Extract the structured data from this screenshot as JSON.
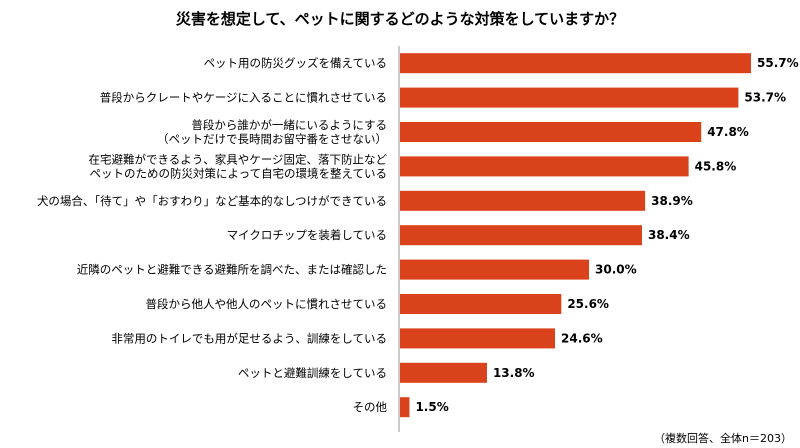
{
  "chart_data": {
    "type": "bar",
    "orientation": "horizontal",
    "title": "災害を想定して、ペットに関するどのような対策をしていますか？",
    "categories": [
      "ペット用の防災グッズを備えている",
      "普段からクレートやケージに入ることに慣れさせている",
      "普段から誰かが一緒にいるようにする\n（ペットだけで長時間お留守番をさせない）",
      "在宅避難ができるよう、家具やケージ固定、落下防止など\nペットのための防災対策によって自宅の環境を整えている",
      "犬の場合、「待て」や「おすわり」など基本的なしつけができている",
      "マイクロチップを装着している",
      "近隣のペットと避難できる避難所を調べた、または確認した",
      "普段から他人や他人のペットに慣れさせている",
      "非常用のトイレでも用が足せるよう、訓練をしている",
      "ペットと避難訓練をしている",
      "その他"
    ],
    "values": [
      55.7,
      53.7,
      47.8,
      45.8,
      38.9,
      38.4,
      30.0,
      25.6,
      24.6,
      13.8,
      1.5
    ],
    "value_labels": [
      "55.7%",
      "53.7%",
      "47.8%",
      "45.8%",
      "38.9%",
      "38.4%",
      "30.0%",
      "25.6%",
      "24.6%",
      "13.8%",
      "1.5%"
    ],
    "xlim": [
      0,
      60
    ],
    "bar_color": "#D9421A",
    "axis_color": "#999999",
    "grid": false,
    "legend": "none",
    "note": "（複数回答、全体n＝203）"
  }
}
